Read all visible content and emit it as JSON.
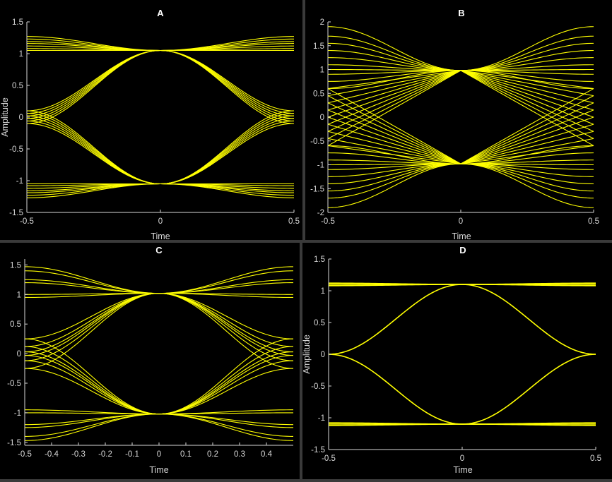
{
  "colors": {
    "background": "#000000",
    "trace": "#ffff00",
    "axes": "#d8d8d8",
    "figure": "#3a3a3a"
  },
  "chart_data": [
    {
      "type": "line",
      "title": "A",
      "xlabel": "Time",
      "ylabel": "Amplitude",
      "xlim": [
        -0.5,
        0.5
      ],
      "ylim": [
        -1.5,
        1.5
      ],
      "xticks": [
        -0.5,
        0,
        0.5
      ],
      "yticks": [
        -1.5,
        -1,
        -0.5,
        0,
        0.5,
        1,
        1.5
      ],
      "grid": false,
      "eye_crossing_amplitude": 1.05,
      "outer_levels": [
        1.05,
        1.08,
        1.12,
        1.16,
        1.19,
        1.23,
        1.27
      ],
      "edge_levels": [
        -0.1,
        -0.06,
        -0.02,
        0.02,
        0.06,
        0.1
      ]
    },
    {
      "type": "line",
      "title": "B",
      "xlabel": "Time",
      "ylabel": "",
      "xlim": [
        -0.5,
        0.5
      ],
      "ylim": [
        -2,
        2
      ],
      "xticks": [
        -0.5,
        0,
        0.5
      ],
      "yticks": [
        -2,
        -1.5,
        -1,
        -0.5,
        0,
        0.5,
        1,
        1.5,
        2
      ],
      "grid": false,
      "eye_crossing_amplitude": 0.98,
      "outer_levels": [
        0.6,
        0.75,
        0.9,
        1.0,
        1.1,
        1.25,
        1.4,
        1.55,
        1.7,
        1.9
      ],
      "edge_levels": [
        -0.6,
        -0.45,
        -0.3,
        -0.15,
        0,
        0.15,
        0.3,
        0.45,
        0.6
      ]
    },
    {
      "type": "line",
      "title": "C",
      "xlabel": "Time",
      "ylabel": "",
      "xlim": [
        -0.5,
        0.5
      ],
      "ylim": [
        -1.55,
        1.6
      ],
      "xticks": [
        -0.5,
        -0.4,
        -0.3,
        -0.2,
        -0.1,
        0,
        0.1,
        0.2,
        0.3,
        0.4
      ],
      "yticks": [
        -1.5,
        -1,
        -0.5,
        0,
        0.5,
        1,
        1.5
      ],
      "grid": false,
      "eye_crossing_amplitude": 1.02,
      "outer_levels": [
        0.95,
        1.0,
        1.2,
        1.25,
        1.4,
        1.47
      ],
      "edge_levels": [
        -0.25,
        -0.12,
        -0.03,
        0.03,
        0.12,
        0.25
      ]
    },
    {
      "type": "line",
      "title": "D",
      "xlabel": "Time",
      "ylabel": "Amplitude",
      "xlim": [
        -0.5,
        0.5
      ],
      "ylim": [
        -1.5,
        1.5
      ],
      "xticks": [
        -0.5,
        0,
        0.5
      ],
      "yticks": [
        -1.5,
        -1,
        -0.5,
        0,
        0.5,
        1,
        1.5
      ],
      "grid": false,
      "eye_crossing_amplitude": 1.1,
      "outer_levels": [
        1.08,
        1.1,
        1.12
      ],
      "edge_levels": [
        0
      ]
    }
  ]
}
